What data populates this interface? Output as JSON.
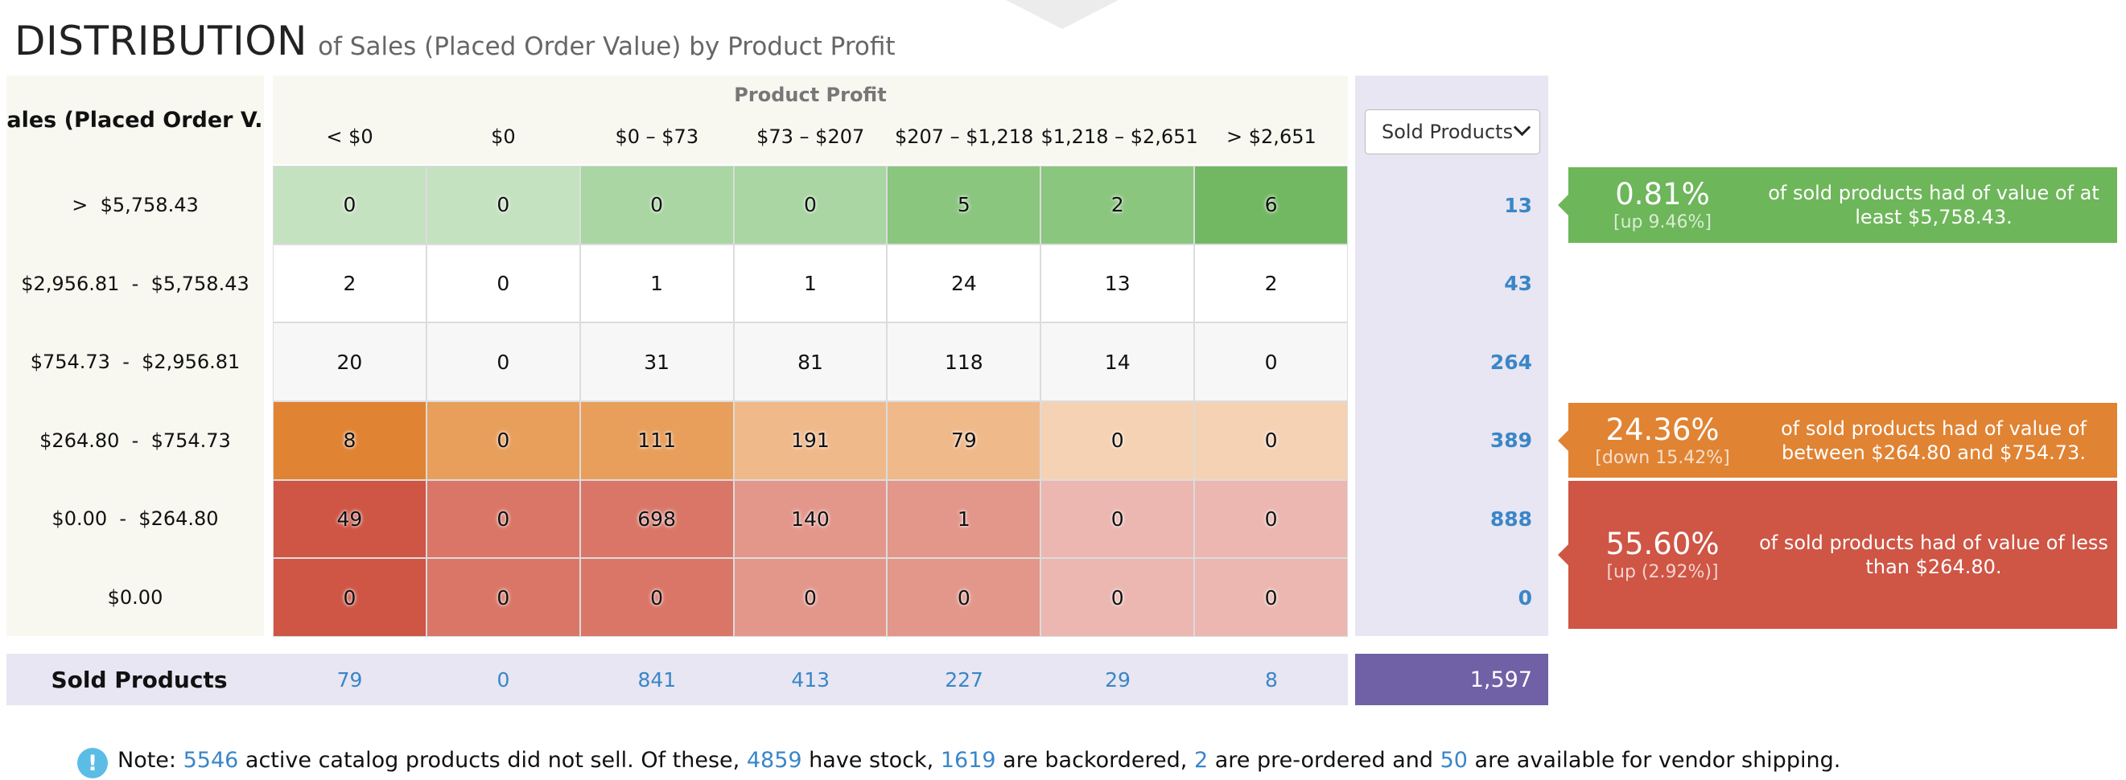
{
  "title": {
    "main": "DISTRIBUTION",
    "sub": "of Sales (Placed Order Value) by Product Profit"
  },
  "row_header": "Sales (Placed Order V...",
  "column_axis_title": "Product Profit",
  "columns": [
    "< $0",
    "$0",
    "$0 – $73",
    "$73 – $207",
    "$207 – $1,218",
    "$1,218 – $2,651",
    "> $2,651"
  ],
  "rows": [
    {
      "label": ">  $5,758.43",
      "values": [
        "0",
        "0",
        "0",
        "0",
        "5",
        "2",
        "6"
      ],
      "total": "13"
    },
    {
      "label": "$2,956.81  -  $5,758.43",
      "values": [
        "2",
        "0",
        "1",
        "1",
        "24",
        "13",
        "2"
      ],
      "total": "43"
    },
    {
      "label": "$754.73  -  $2,956.81",
      "values": [
        "20",
        "0",
        "31",
        "81",
        "118",
        "14",
        "0"
      ],
      "total": "264"
    },
    {
      "label": "$264.80  -  $754.73",
      "values": [
        "8",
        "0",
        "111",
        "191",
        "79",
        "0",
        "0"
      ],
      "total": "389"
    },
    {
      "label": "$0.00  -  $264.80",
      "values": [
        "49",
        "0",
        "698",
        "140",
        "1",
        "0",
        "0"
      ],
      "total": "888"
    },
    {
      "label": "$0.00",
      "values": [
        "0",
        "0",
        "0",
        "0",
        "0",
        "0",
        "0"
      ],
      "total": "0"
    }
  ],
  "cell_colors": [
    [
      "#c5e2c0",
      "#c5e2c0",
      "#a9d6a2",
      "#a9d6a2",
      "#8bc67f",
      "#8bc67f",
      "#72b862"
    ],
    [
      "#ffffff",
      "#ffffff",
      "#ffffff",
      "#ffffff",
      "#ffffff",
      "#ffffff",
      "#ffffff"
    ],
    [
      "#f7f7f7",
      "#f7f7f7",
      "#f7f7f7",
      "#f7f7f7",
      "#f7f7f7",
      "#f7f7f7",
      "#f7f7f7"
    ],
    [
      "#e08333",
      "#e89f5c",
      "#e89f5c",
      "#f0b98a",
      "#f0b98a",
      "#f5d2b4",
      "#f5d2b4"
    ],
    [
      "#cf5545",
      "#da7667",
      "#da7667",
      "#e3978b",
      "#e3978b",
      "#ebb7b0",
      "#ebb7b0"
    ],
    [
      "#cf5545",
      "#da7667",
      "#da7667",
      "#e3978b",
      "#e3978b",
      "#ebb7b0",
      "#ebb7b0"
    ]
  ],
  "total_select": {
    "label": "Sold Products"
  },
  "footer": {
    "label": "Sold Products",
    "values": [
      "79",
      "0",
      "841",
      "413",
      "227",
      "29",
      "8"
    ],
    "grand_total": "1,597"
  },
  "callouts": [
    {
      "percent": "0.81%",
      "change": "[up 9.46%]",
      "text": "of sold products had of value of at least $5,758.43.",
      "color": "#6db65a",
      "row_index": 0,
      "row_span": 1
    },
    {
      "percent": "24.36%",
      "change": "[down 15.42%]",
      "text": "of sold products had of value of between $264.80 and $754.73.",
      "color": "#e08333",
      "row_index": 3,
      "row_span": 1
    },
    {
      "percent": "55.60%",
      "change": "[up (2.92%)]",
      "text": "of sold products had of value of less than $264.80.",
      "color": "#cf5545",
      "row_index": 4,
      "row_span": 2
    }
  ],
  "note": {
    "icon": "info-icon",
    "prefix": "Note:",
    "inactive": "5546",
    "t1": "active catalog products did not sell. Of these,",
    "stock": "4859",
    "t2": "have stock,",
    "backordered": "1619",
    "t3": "are backordered,",
    "preordered": "2",
    "t4": "are pre-ordered and",
    "vendor": "50",
    "t5": "are available for vendor shipping."
  }
}
